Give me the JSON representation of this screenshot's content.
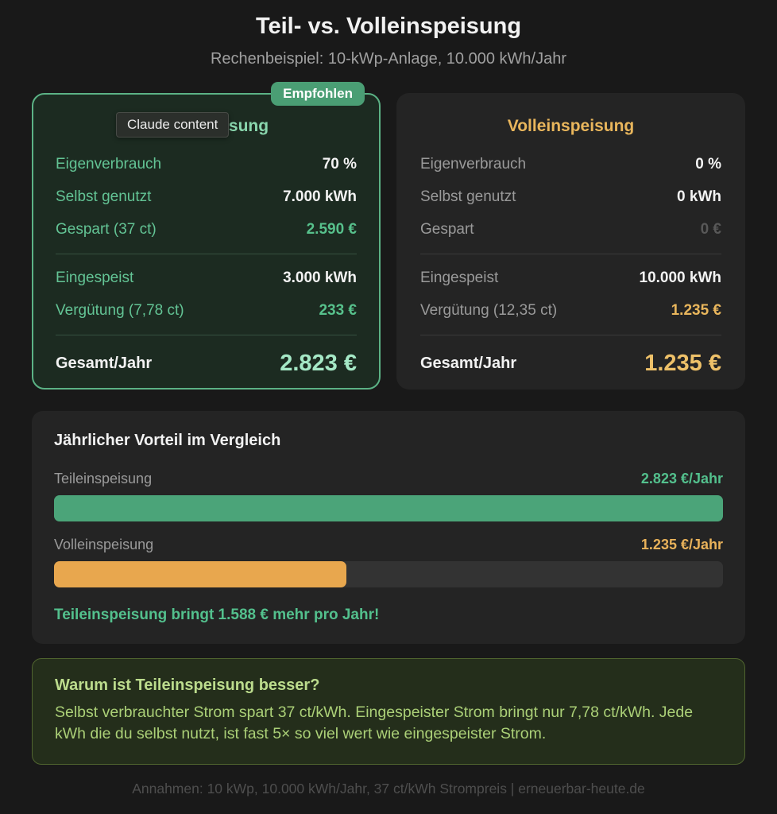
{
  "header": {
    "title": "Teil- vs. Volleinspeisung",
    "subtitle": "Rechenbeispiel: 10-kWp-Anlage, 10.000 kWh/Jahr"
  },
  "badge": {
    "label": "Empfohlen"
  },
  "tooltip": {
    "text": "Claude content"
  },
  "cards": {
    "teil": {
      "title": "Teileinspeisung",
      "rows": [
        {
          "label": "Eigenverbrauch",
          "value": "70 %"
        },
        {
          "label": "Selbst genutzt",
          "value": "7.000 kWh"
        },
        {
          "label": "Gespart (37 ct)",
          "value": "2.590 €"
        },
        {
          "label": "Eingespeist",
          "value": "3.000 kWh"
        },
        {
          "label": "Vergütung (7,78 ct)",
          "value": "233 €"
        }
      ],
      "total": {
        "label": "Gesamt/Jahr",
        "value": "2.823 €"
      }
    },
    "voll": {
      "title": "Volleinspeisung",
      "rows": [
        {
          "label": "Eigenverbrauch",
          "value": "0 %"
        },
        {
          "label": "Selbst genutzt",
          "value": "0 kWh"
        },
        {
          "label": "Gespart",
          "value": "0 €"
        },
        {
          "label": "Eingespeist",
          "value": "10.000 kWh"
        },
        {
          "label": "Vergütung (12,35 ct)",
          "value": "1.235 €"
        }
      ],
      "total": {
        "label": "Gesamt/Jahr",
        "value": "1.235 €"
      }
    }
  },
  "comparison": {
    "heading": "Jährlicher Vorteil im Vergleich",
    "bars": [
      {
        "label": "Teileinspeisung",
        "value_label": "2.823 €/Jahr",
        "percent": 100
      },
      {
        "label": "Volleinspeisung",
        "value_label": "1.235 €/Jahr",
        "percent": 43.7
      }
    ],
    "message": "Teileinspeisung bringt 1.588 € mehr pro Jahr!"
  },
  "info": {
    "heading": "Warum ist Teileinspeisung besser?",
    "body": "Selbst verbrauchter Strom spart 37 ct/kWh. Eingespeister Strom bringt nur 7,78 ct/kWh. Jede kWh die du selbst nutzt, ist fast 5× so viel wert wie eingespeister Strom."
  },
  "footer": {
    "text": "Annahmen: 10 kWp, 10.000 kWh/Jahr, 37 ct/kWh Strompreis | erneuerbar-heute.de"
  },
  "colors": {
    "page_bg": "#191919",
    "teil_card_bg": "#1c2b21",
    "teil_border": "#5bb285",
    "teil_label": "#63c495",
    "teil_value_green": "#57c18c",
    "teil_total": "#a5e8c6",
    "voll_card_bg": "#242424",
    "voll_title": "#e9b65c",
    "voll_total": "#eec169",
    "badge_bg": "#4a9e74",
    "bar_green": "#4ba479",
    "bar_orange": "#e8a74e",
    "bar_track": "#333333",
    "info_bg": "#242e1b",
    "info_border": "#50652f",
    "info_text": "#abd077"
  },
  "chart_data": {
    "type": "bar",
    "orientation": "horizontal",
    "title": "Jährlicher Vorteil im Vergleich",
    "categories": [
      "Teileinspeisung",
      "Volleinspeisung"
    ],
    "values": [
      2823,
      1235
    ],
    "unit": "€/Jahr",
    "data_labels": [
      "2.823 €/Jahr",
      "1.235 €/Jahr"
    ],
    "bar_colors": [
      "#4ba479",
      "#e8a74e"
    ],
    "xlim": [
      0,
      2823
    ],
    "annotation": "Teileinspeisung bringt 1.588 € mehr pro Jahr!",
    "grid": false,
    "legend": false
  }
}
